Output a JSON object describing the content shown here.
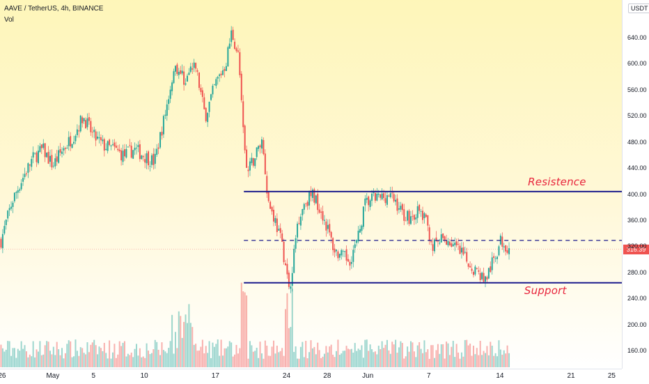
{
  "header": {
    "symbol_line": "AAVE / TetherUS, 4h, BINANCE",
    "volume_label": "Vol",
    "currency_badge": "USDT"
  },
  "last_price": {
    "label": "316.39",
    "value": 316.39,
    "color": "#ef5350"
  },
  "colors": {
    "up": "#26a69a",
    "down": "#ef5350",
    "levels": "#1a1a8c",
    "annotation": "#e8243c"
  },
  "chart_data": {
    "type": "candlestick",
    "price_ticks": [
      "640.00",
      "600.00",
      "560.00",
      "520.00",
      "480.00",
      "440.00",
      "400.00",
      "360.00",
      "320.00",
      "280.00",
      "240.00",
      "200.00",
      "160.00"
    ],
    "price_tick_values": [
      640,
      600,
      560,
      520,
      480,
      440,
      400,
      360,
      320,
      280,
      240,
      200,
      160
    ],
    "x_ticks": [
      "26",
      "May",
      "5",
      "10",
      "17",
      "24",
      "28",
      "Jun",
      "7",
      "14",
      "21",
      "25"
    ],
    "x_tick_days": [
      -5,
      0,
      4,
      9,
      16,
      23,
      27,
      31,
      37,
      44,
      51,
      55
    ],
    "x_range_days": [
      -5.2,
      56.0
    ],
    "candles_first_day": -5.1,
    "candles_last_day": 45.0,
    "ylim": [
      140,
      670
    ],
    "price_path_keypoints": [
      [
        -5.1,
        330
      ],
      [
        -4,
        390
      ],
      [
        -3,
        425
      ],
      [
        -2,
        455
      ],
      [
        -1,
        470
      ],
      [
        0,
        445
      ],
      [
        1,
        470
      ],
      [
        2,
        490
      ],
      [
        3,
        520
      ],
      [
        4,
        490
      ],
      [
        5,
        475
      ],
      [
        6,
        470
      ],
      [
        7,
        460
      ],
      [
        8,
        470
      ],
      [
        9,
        460
      ],
      [
        10,
        450
      ],
      [
        11,
        520
      ],
      [
        12,
        600
      ],
      [
        13,
        575
      ],
      [
        14,
        600
      ],
      [
        15,
        520
      ],
      [
        16,
        570
      ],
      [
        17,
        600
      ],
      [
        17.6,
        650
      ],
      [
        18.3,
        610
      ],
      [
        18.7,
        500
      ],
      [
        19.1,
        430
      ],
      [
        19.9,
        460
      ],
      [
        20.6,
        485
      ],
      [
        21.2,
        390
      ],
      [
        21.9,
        360
      ],
      [
        22.6,
        320
      ],
      [
        23.3,
        255
      ],
      [
        24.1,
        360
      ],
      [
        24.8,
        390
      ],
      [
        25.6,
        400
      ],
      [
        26.3,
        380
      ],
      [
        27.0,
        350
      ],
      [
        27.7,
        315
      ],
      [
        28.4,
        305
      ],
      [
        29.2,
        300
      ],
      [
        30.0,
        330
      ],
      [
        30.7,
        385
      ],
      [
        31.5,
        395
      ],
      [
        32.2,
        395
      ],
      [
        33.0,
        400
      ],
      [
        33.7,
        390
      ],
      [
        34.5,
        370
      ],
      [
        35.2,
        365
      ],
      [
        36.0,
        375
      ],
      [
        36.7,
        360
      ],
      [
        37.4,
        320
      ],
      [
        38.2,
        330
      ],
      [
        38.9,
        330
      ],
      [
        39.6,
        320
      ],
      [
        40.4,
        305
      ],
      [
        41.1,
        292
      ],
      [
        41.9,
        280
      ],
      [
        42.6,
        270
      ],
      [
        43.4,
        300
      ],
      [
        44.1,
        330
      ],
      [
        45.0,
        318
      ]
    ],
    "volume_scale": "relative",
    "levels": [
      {
        "name": "resistance",
        "price": 405,
        "from_day": 18.8,
        "to_day": 56.0,
        "style": "solid"
      },
      {
        "name": "mid",
        "price": 330,
        "from_day": 18.8,
        "to_day": 56.0,
        "style": "dashed"
      },
      {
        "name": "support",
        "price": 265,
        "from_day": 18.8,
        "to_day": 56.0,
        "style": "solid"
      }
    ],
    "annotations": [
      {
        "text": "Resistence",
        "price": 410,
        "day": 49.5
      },
      {
        "text": "Support",
        "price": 253,
        "day": 49.0
      }
    ]
  }
}
